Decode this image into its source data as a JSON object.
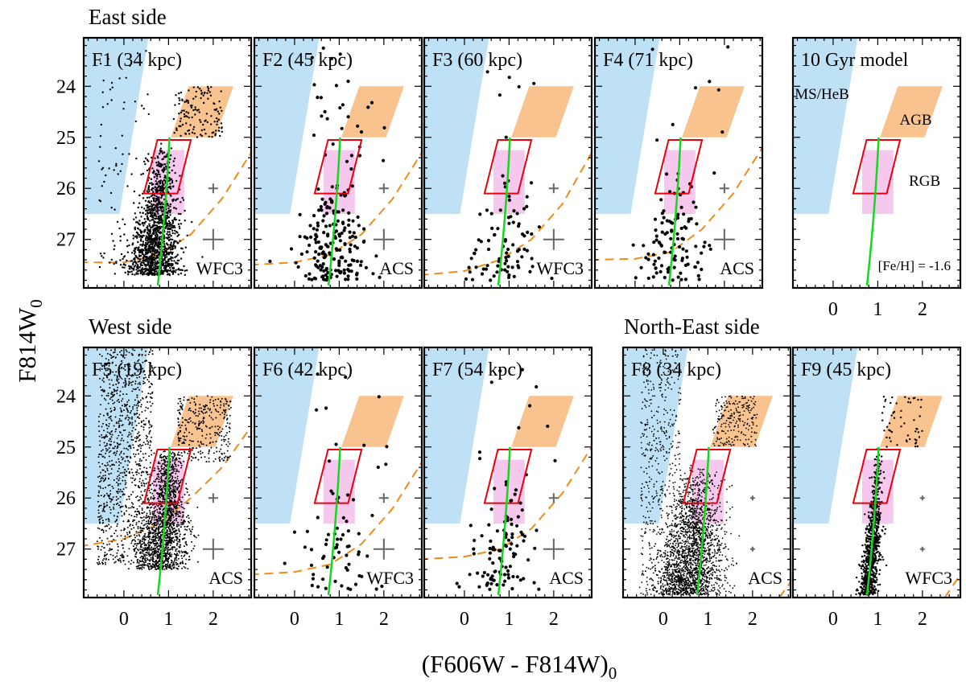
{
  "colors": {
    "ms_heb": "#bfe1f6",
    "agb": "#f8c38f",
    "rgb_box": "#e8000d",
    "rgb_fill": "#f6c8ee",
    "isochrone": "#14d81e",
    "completeness": "#ef8c1c",
    "wfc3_label": "#5a1a9c",
    "acs_label": "#e8000d",
    "ms_heb_label": "#1a6ae8",
    "errorbar": "#666666"
  },
  "figure": {
    "ylabel": "F814W",
    "ylabel_sub": "0",
    "xlabel": "(F606W - F814W)",
    "xlabel_sub": "0",
    "group_titles": [
      "East side",
      "West side",
      "North-East side"
    ]
  },
  "chart_data": [
    {
      "type": "scatter",
      "panel": "F1",
      "title": "F1 (34 kpc)",
      "instrument": "WFC3",
      "xlim": [
        -0.9,
        2.85
      ],
      "ylim": [
        27.95,
        23.05
      ],
      "x_ticks": [
        0,
        1,
        2
      ],
      "y_ticks": [
        24,
        25,
        26,
        27
      ],
      "density": "high",
      "n_points_approx": 1600,
      "completeness_curve": [
        [
          -1.0,
          27.45
        ],
        [
          0.0,
          27.45
        ],
        [
          0.8,
          27.3
        ],
        [
          1.5,
          26.9
        ],
        [
          2.2,
          26.2
        ],
        [
          2.85,
          25.3
        ]
      ],
      "error_bars": [
        {
          "x": 2.0,
          "y": 26.0,
          "size": "small"
        },
        {
          "x": 2.0,
          "y": 27.0,
          "size": "large"
        }
      ]
    },
    {
      "type": "scatter",
      "panel": "F2",
      "title": "F2 (45 kpc)",
      "instrument": "ACS",
      "xlim": [
        -0.9,
        2.85
      ],
      "ylim": [
        27.95,
        23.05
      ],
      "x_ticks": [
        0,
        1,
        2
      ],
      "y_ticks": [
        24,
        25,
        26,
        27
      ],
      "density": "sparse",
      "n_points_approx": 220,
      "completeness_curve": [
        [
          -1.0,
          27.5
        ],
        [
          0.0,
          27.45
        ],
        [
          0.8,
          27.3
        ],
        [
          1.5,
          26.9
        ],
        [
          2.2,
          26.2
        ],
        [
          2.85,
          25.3
        ]
      ],
      "error_bars": [
        {
          "x": 2.0,
          "y": 26.0,
          "size": "small"
        },
        {
          "x": 2.0,
          "y": 27.0,
          "size": "large"
        }
      ]
    },
    {
      "type": "scatter",
      "panel": "F3",
      "title": "F3 (60 kpc)",
      "instrument": "WFC3",
      "xlim": [
        -0.9,
        2.85
      ],
      "ylim": [
        27.95,
        23.05
      ],
      "x_ticks": [
        0,
        1,
        2
      ],
      "y_ticks": [
        24,
        25,
        26,
        27
      ],
      "density": "sparse",
      "n_points_approx": 90,
      "completeness_curve": [
        [
          -1.0,
          27.7
        ],
        [
          0.0,
          27.62
        ],
        [
          0.8,
          27.4
        ],
        [
          1.5,
          27.0
        ],
        [
          2.2,
          26.3
        ],
        [
          2.85,
          25.3
        ]
      ],
      "error_bars": [
        {
          "x": 2.0,
          "y": 26.0,
          "size": "small"
        },
        {
          "x": 2.0,
          "y": 27.0,
          "size": "large"
        }
      ]
    },
    {
      "type": "scatter",
      "panel": "F4",
      "title": "F4 (71 kpc)",
      "instrument": "ACS",
      "xlim": [
        -0.9,
        2.85
      ],
      "ylim": [
        27.95,
        23.05
      ],
      "x_ticks": [
        0,
        1,
        2
      ],
      "y_ticks": [
        24,
        25,
        26,
        27
      ],
      "density": "sparse",
      "n_points_approx": 120,
      "completeness_curve": [
        [
          -1.0,
          27.4
        ],
        [
          0.0,
          27.38
        ],
        [
          0.8,
          27.25
        ],
        [
          1.5,
          26.8
        ],
        [
          2.2,
          26.1
        ],
        [
          2.85,
          25.2
        ]
      ],
      "error_bars": [
        {
          "x": 2.0,
          "y": 26.0,
          "size": "small"
        },
        {
          "x": 2.0,
          "y": 27.0,
          "size": "large"
        }
      ]
    },
    {
      "type": "scatter",
      "panel": "model",
      "title": "10 Gyr model",
      "xlim": [
        -0.9,
        2.85
      ],
      "ylim": [
        27.95,
        23.05
      ],
      "density": "none",
      "n_points_approx": 0,
      "annotations": [
        "MS/HeB",
        "AGB",
        "RGB",
        "[Fe/H] = -1.6"
      ],
      "error_bars": []
    },
    {
      "type": "scatter",
      "panel": "F5",
      "title": "F5 (19 kpc)",
      "instrument": "ACS",
      "xlim": [
        -0.9,
        2.85
      ],
      "ylim": [
        27.95,
        23.05
      ],
      "x_ticks": [
        0,
        1,
        2
      ],
      "y_ticks": [
        24,
        25,
        26,
        27
      ],
      "density": "very_high",
      "n_points_approx": 6000,
      "completeness_curve": [
        [
          -1.0,
          26.95
        ],
        [
          0.0,
          26.8
        ],
        [
          0.8,
          26.5
        ],
        [
          1.5,
          26.0
        ],
        [
          2.2,
          25.4
        ],
        [
          2.85,
          24.6
        ]
      ],
      "error_bars": [
        {
          "x": 2.0,
          "y": 26.0,
          "size": "small"
        },
        {
          "x": 2.0,
          "y": 27.0,
          "size": "large"
        }
      ]
    },
    {
      "type": "scatter",
      "panel": "F6",
      "title": "F6 (42 kpc)",
      "instrument": "WFC3",
      "xlim": [
        -0.9,
        2.85
      ],
      "ylim": [
        27.95,
        23.05
      ],
      "x_ticks": [
        0,
        1,
        2
      ],
      "y_ticks": [
        24,
        25,
        26,
        27
      ],
      "density": "sparse",
      "n_points_approx": 70,
      "completeness_curve": [
        [
          -1.0,
          27.5
        ],
        [
          0.0,
          27.45
        ],
        [
          0.8,
          27.3
        ],
        [
          1.5,
          26.9
        ],
        [
          2.2,
          26.2
        ],
        [
          2.85,
          25.3
        ]
      ],
      "error_bars": [
        {
          "x": 2.0,
          "y": 26.0,
          "size": "small"
        },
        {
          "x": 2.0,
          "y": 27.0,
          "size": "large"
        }
      ]
    },
    {
      "type": "scatter",
      "panel": "F7",
      "title": "F7 (54 kpc)",
      "instrument": "ACS",
      "xlim": [
        -0.9,
        2.85
      ],
      "ylim": [
        27.95,
        23.05
      ],
      "x_ticks": [
        0,
        1,
        2
      ],
      "y_ticks": [
        24,
        25,
        26,
        27
      ],
      "density": "sparse",
      "n_points_approx": 110,
      "completeness_curve": [
        [
          -1.0,
          27.2
        ],
        [
          0.0,
          27.15
        ],
        [
          0.8,
          27.0
        ],
        [
          1.5,
          26.6
        ],
        [
          2.2,
          25.9
        ],
        [
          2.85,
          25.0
        ]
      ],
      "error_bars": [
        {
          "x": 2.0,
          "y": 26.0,
          "size": "small"
        },
        {
          "x": 2.0,
          "y": 27.0,
          "size": "large"
        }
      ]
    },
    {
      "type": "scatter",
      "panel": "F8",
      "title": "F8 (34 kpc)",
      "instrument": "ACS",
      "xlim": [
        -0.9,
        2.85
      ],
      "ylim": [
        27.95,
        23.05
      ],
      "x_ticks": [
        0,
        1,
        2
      ],
      "y_ticks": [
        24,
        25,
        26,
        27
      ],
      "density": "high",
      "n_points_approx": 3000,
      "completeness_curve": [
        [
          2.6,
          27.95
        ],
        [
          2.85,
          27.65
        ]
      ],
      "error_bars": [
        {
          "x": 2.0,
          "y": 26.0,
          "size": "tiny"
        },
        {
          "x": 2.0,
          "y": 27.0,
          "size": "tiny"
        }
      ]
    },
    {
      "type": "scatter",
      "panel": "F9",
      "title": "F9 (45 kpc)",
      "instrument": "WFC3",
      "xlim": [
        -0.9,
        2.85
      ],
      "ylim": [
        27.95,
        23.05
      ],
      "x_ticks": [
        0,
        1,
        2
      ],
      "y_ticks": [
        24,
        25,
        26,
        27
      ],
      "density": "medium",
      "n_points_approx": 900,
      "completeness_curve": [
        [
          2.5,
          27.95
        ],
        [
          2.85,
          27.5
        ]
      ],
      "error_bars": [
        {
          "x": 2.0,
          "y": 26.0,
          "size": "tiny"
        },
        {
          "x": 2.0,
          "y": 27.0,
          "size": "tiny"
        }
      ]
    }
  ]
}
